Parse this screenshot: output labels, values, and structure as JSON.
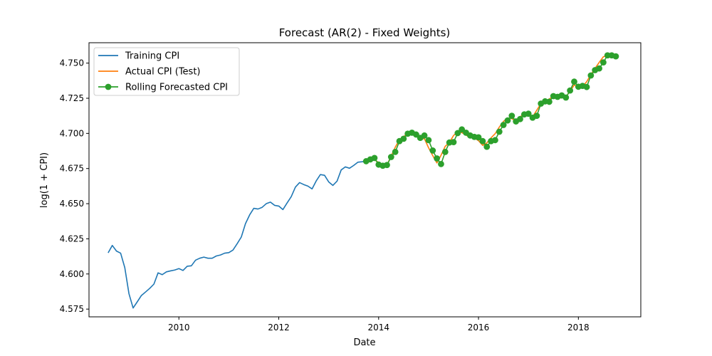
{
  "chart_data": {
    "type": "line",
    "title": "Forecast (AR(2) - Fixed Weights)",
    "xlabel": "Date",
    "ylabel": "log(1 + CPI)",
    "xlim": [
      2008.2,
      2019.25
    ],
    "ylim": [
      4.5695,
      4.7645
    ],
    "grid": false,
    "legend_position": "top-left",
    "x_ticks": [
      {
        "value": 2010,
        "label": "2010"
      },
      {
        "value": 2012,
        "label": "2012"
      },
      {
        "value": 2014,
        "label": "2014"
      },
      {
        "value": 2016,
        "label": "2016"
      },
      {
        "value": 2018,
        "label": "2018"
      }
    ],
    "y_ticks": [
      {
        "value": 4.575,
        "label": "4.575"
      },
      {
        "value": 4.6,
        "label": "4.600"
      },
      {
        "value": 4.625,
        "label": "4.625"
      },
      {
        "value": 4.65,
        "label": "4.650"
      },
      {
        "value": 4.675,
        "label": "4.675"
      },
      {
        "value": 4.7,
        "label": "4.700"
      },
      {
        "value": 4.725,
        "label": "4.725"
      },
      {
        "value": 4.75,
        "label": "4.750"
      }
    ],
    "series": [
      {
        "name": "Training CPI",
        "color": "#1f77b4",
        "style": "line",
        "points": [
          [
            2008.5833,
            4.615
          ],
          [
            2008.6667,
            4.6203
          ],
          [
            2008.75,
            4.6163
          ],
          [
            2008.8333,
            4.6148
          ],
          [
            2008.9167,
            4.6045
          ],
          [
            2009.0,
            4.586
          ],
          [
            2009.0833,
            4.5758
          ],
          [
            2009.1667,
            4.5802
          ],
          [
            2009.25,
            4.5847
          ],
          [
            2009.3333,
            4.5872
          ],
          [
            2009.4167,
            4.5898
          ],
          [
            2009.5,
            4.5928
          ],
          [
            2009.5833,
            4.6008
          ],
          [
            2009.6667,
            4.5995
          ],
          [
            2009.75,
            4.6015
          ],
          [
            2009.8333,
            4.6022
          ],
          [
            2009.9167,
            4.6028
          ],
          [
            2010.0,
            4.6038
          ],
          [
            2010.0833,
            4.6025
          ],
          [
            2010.1667,
            4.6055
          ],
          [
            2010.25,
            4.6058
          ],
          [
            2010.3333,
            4.6098
          ],
          [
            2010.4167,
            4.6112
          ],
          [
            2010.5,
            4.612
          ],
          [
            2010.5833,
            4.6112
          ],
          [
            2010.6667,
            4.6112
          ],
          [
            2010.75,
            4.6128
          ],
          [
            2010.8333,
            4.6135
          ],
          [
            2010.9167,
            4.6148
          ],
          [
            2011.0,
            4.6152
          ],
          [
            2011.0833,
            4.617
          ],
          [
            2011.1667,
            4.6215
          ],
          [
            2011.25,
            4.6263
          ],
          [
            2011.3333,
            4.6358
          ],
          [
            2011.4167,
            4.642
          ],
          [
            2011.5,
            4.6467
          ],
          [
            2011.5833,
            4.6462
          ],
          [
            2011.6667,
            4.6474
          ],
          [
            2011.75,
            4.65
          ],
          [
            2011.8333,
            4.6511
          ],
          [
            2011.9167,
            4.6488
          ],
          [
            2012.0,
            4.6483
          ],
          [
            2012.0833,
            4.6458
          ],
          [
            2012.1667,
            4.6505
          ],
          [
            2012.25,
            4.655
          ],
          [
            2012.3333,
            4.6618
          ],
          [
            2012.4167,
            4.665
          ],
          [
            2012.5,
            4.6636
          ],
          [
            2012.5833,
            4.6625
          ],
          [
            2012.6667,
            4.6605
          ],
          [
            2012.75,
            4.6662
          ],
          [
            2012.8333,
            4.6707
          ],
          [
            2012.9167,
            4.6702
          ],
          [
            2013.0,
            4.6655
          ],
          [
            2013.0833,
            4.663
          ],
          [
            2013.1667,
            4.666
          ],
          [
            2013.25,
            4.674
          ],
          [
            2013.3333,
            4.6762
          ],
          [
            2013.4167,
            4.6752
          ],
          [
            2013.5,
            4.6772
          ],
          [
            2013.5833,
            4.6795
          ],
          [
            2013.6667,
            4.6798
          ],
          [
            2013.75,
            4.6802
          ]
        ]
      },
      {
        "name": "Actual CPI (Test)",
        "color": "#ff7f0e",
        "style": "line",
        "points": [
          [
            2013.75,
            4.6802
          ],
          [
            2013.8333,
            4.6807
          ],
          [
            2013.9167,
            4.6812
          ],
          [
            2014.0,
            4.6793
          ],
          [
            2014.0833,
            4.6762
          ],
          [
            2014.1667,
            4.6775
          ],
          [
            2014.25,
            4.6838
          ],
          [
            2014.3333,
            4.6902
          ],
          [
            2014.4167,
            4.6955
          ],
          [
            2014.5,
            4.6975
          ],
          [
            2014.5833,
            4.7005
          ],
          [
            2014.6667,
            4.7008
          ],
          [
            2014.75,
            4.6998
          ],
          [
            2014.8333,
            4.6962
          ],
          [
            2014.9167,
            4.6962
          ],
          [
            2015.0,
            4.6898
          ],
          [
            2015.0833,
            4.6842
          ],
          [
            2015.1667,
            4.679
          ],
          [
            2015.25,
            4.6845
          ],
          [
            2015.3333,
            4.6908
          ],
          [
            2015.4167,
            4.6935
          ],
          [
            2015.5,
            4.6985
          ],
          [
            2015.5833,
            4.7012
          ],
          [
            2015.6667,
            4.7005
          ],
          [
            2015.75,
            4.6988
          ],
          [
            2015.8333,
            4.697
          ],
          [
            2015.9167,
            4.6968
          ],
          [
            2016.0,
            4.6948
          ],
          [
            2016.0833,
            4.6915
          ],
          [
            2016.1667,
            4.6932
          ],
          [
            2016.25,
            4.6968
          ],
          [
            2016.3333,
            4.6998
          ],
          [
            2016.4167,
            4.7045
          ],
          [
            2016.5,
            4.7085
          ],
          [
            2016.5833,
            4.7108
          ],
          [
            2016.6667,
            4.7105
          ],
          [
            2016.75,
            4.7088
          ],
          [
            2016.8333,
            4.7118
          ],
          [
            2016.9167,
            4.7138
          ],
          [
            2017.0,
            4.713
          ],
          [
            2017.0833,
            4.7118
          ],
          [
            2017.1667,
            4.7165
          ],
          [
            2017.25,
            4.7212
          ],
          [
            2017.3333,
            4.7225
          ],
          [
            2017.4167,
            4.7245
          ],
          [
            2017.5,
            4.7262
          ],
          [
            2017.5833,
            4.7248
          ],
          [
            2017.6667,
            4.7255
          ],
          [
            2017.75,
            4.7262
          ],
          [
            2017.8333,
            4.7298
          ],
          [
            2017.9167,
            4.7345
          ],
          [
            2018.0,
            4.7328
          ],
          [
            2018.0833,
            4.7332
          ],
          [
            2018.1667,
            4.7368
          ],
          [
            2018.25,
            4.7418
          ],
          [
            2018.3333,
            4.7462
          ],
          [
            2018.4167,
            4.7505
          ],
          [
            2018.5,
            4.7545
          ],
          [
            2018.5833,
            4.7555
          ],
          [
            2018.6667,
            4.7548
          ],
          [
            2018.75,
            4.7545
          ]
        ]
      },
      {
        "name": "Rolling Forecasted CPI",
        "color": "#2ca02c",
        "style": "line-marker",
        "points": [
          [
            2013.75,
            4.6802
          ],
          [
            2013.8333,
            4.6815
          ],
          [
            2013.9167,
            4.6825
          ],
          [
            2014.0,
            4.6778
          ],
          [
            2014.0833,
            4.677
          ],
          [
            2014.1667,
            4.6775
          ],
          [
            2014.25,
            4.6832
          ],
          [
            2014.3333,
            4.6868
          ],
          [
            2014.4167,
            4.6945
          ],
          [
            2014.5,
            4.6962
          ],
          [
            2014.5833,
            4.6998
          ],
          [
            2014.6667,
            4.7005
          ],
          [
            2014.75,
            4.6992
          ],
          [
            2014.8333,
            4.6968
          ],
          [
            2014.9167,
            4.6985
          ],
          [
            2015.0,
            4.6952
          ],
          [
            2015.0833,
            4.6878
          ],
          [
            2015.1667,
            4.6822
          ],
          [
            2015.25,
            4.6782
          ],
          [
            2015.3333,
            4.6868
          ],
          [
            2015.4167,
            4.6935
          ],
          [
            2015.5,
            4.6938
          ],
          [
            2015.5833,
            4.7002
          ],
          [
            2015.6667,
            4.7028
          ],
          [
            2015.75,
            4.7005
          ],
          [
            2015.8333,
            4.6985
          ],
          [
            2015.9167,
            4.6975
          ],
          [
            2016.0,
            4.6972
          ],
          [
            2016.0833,
            4.6945
          ],
          [
            2016.1667,
            4.6905
          ],
          [
            2016.25,
            4.6945
          ],
          [
            2016.3333,
            4.6952
          ],
          [
            2016.4167,
            4.7012
          ],
          [
            2016.5,
            4.706
          ],
          [
            2016.5833,
            4.7092
          ],
          [
            2016.6667,
            4.7125
          ],
          [
            2016.75,
            4.7085
          ],
          [
            2016.8333,
            4.7102
          ],
          [
            2016.9167,
            4.7135
          ],
          [
            2017.0,
            4.714
          ],
          [
            2017.0833,
            4.7112
          ],
          [
            2017.1667,
            4.7125
          ],
          [
            2017.25,
            4.7212
          ],
          [
            2017.3333,
            4.7228
          ],
          [
            2017.4167,
            4.7225
          ],
          [
            2017.5,
            4.7265
          ],
          [
            2017.5833,
            4.726
          ],
          [
            2017.6667,
            4.727
          ],
          [
            2017.75,
            4.7255
          ],
          [
            2017.8333,
            4.7305
          ],
          [
            2017.9167,
            4.7368
          ],
          [
            2018.0,
            4.7332
          ],
          [
            2018.0833,
            4.7338
          ],
          [
            2018.1667,
            4.733
          ],
          [
            2018.25,
            4.7412
          ],
          [
            2018.3333,
            4.745
          ],
          [
            2018.4167,
            4.7462
          ],
          [
            2018.5,
            4.7505
          ],
          [
            2018.5833,
            4.7555
          ],
          [
            2018.6667,
            4.7555
          ],
          [
            2018.75,
            4.7548
          ]
        ]
      }
    ]
  }
}
